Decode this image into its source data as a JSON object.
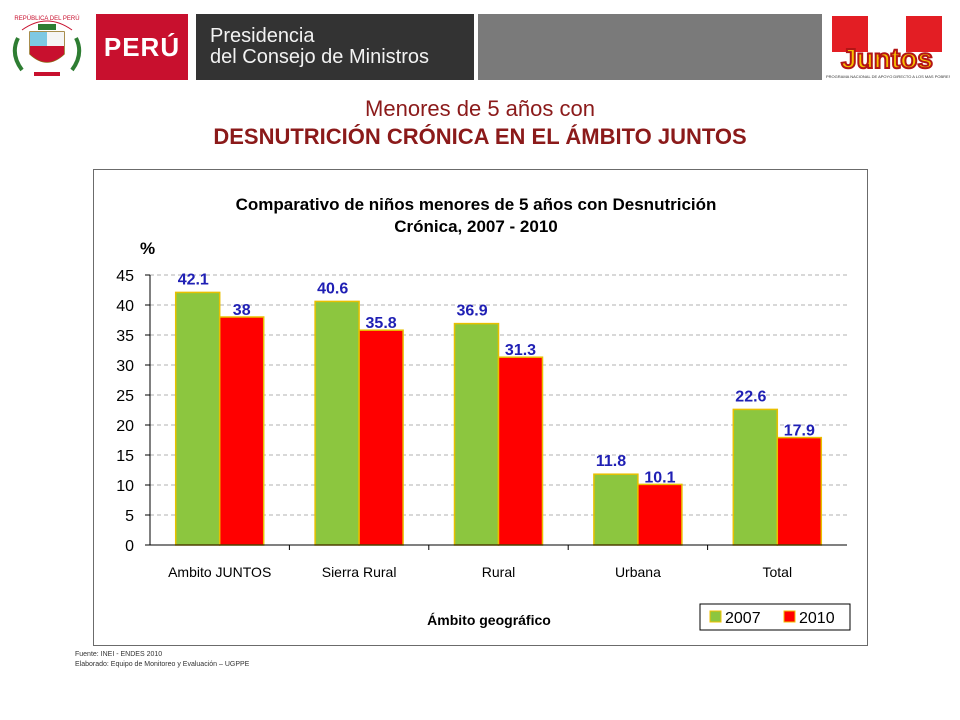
{
  "header": {
    "crest_caption": "REPÚBLICA DEL PERÚ",
    "peru_label": "PERÚ",
    "institution_line1": "Presidencia",
    "institution_line2": "del Consejo de Ministros",
    "program_logo_text": "Juntos",
    "program_logo_sub": "PROGRAMA NACIONAL DE APOYO DIRECTO A LOS MAS POBRES"
  },
  "slide": {
    "title_line1": "Menores de 5 años con",
    "title_line2": "DESNUTRICIÓN CRÓNICA EN EL ÁMBITO JUNTOS"
  },
  "chart_data": {
    "type": "bar",
    "title": "Comparativo de niños menores de 5 años con Desnutrición Crónica, 2007 - 2010",
    "title_line1": "Comparativo de niños menores de 5 años con Desnutrición",
    "title_line2": "Crónica, 2007 - 2010",
    "ylabel": "%",
    "xlabel": "Ámbito geográfico",
    "categories": [
      "Ambito JUNTOS",
      "Sierra Rural",
      "Rural",
      "Urbana",
      "Total"
    ],
    "series": [
      {
        "name": "2007",
        "values": [
          42.1,
          40.6,
          36.9,
          11.8,
          22.6
        ],
        "color": "#8cc63f",
        "label_text": [
          "42.1",
          "40.6",
          "36.9",
          "11.8",
          "22.6"
        ]
      },
      {
        "name": "2010",
        "values": [
          38,
          35.8,
          31.3,
          10.1,
          17.9
        ],
        "color": "#ff0000",
        "label_text": [
          "38",
          "35.8",
          "31.3",
          "10.1",
          "17.9"
        ]
      }
    ],
    "ylim": [
      0,
      45
    ],
    "yticks": [
      0,
      5,
      10,
      15,
      20,
      25,
      30,
      35,
      40,
      45
    ],
    "grid": true,
    "legend_position": "bottom-right",
    "label_color": "#1f1fb4"
  },
  "footer": {
    "source": "Fuente: INEI - ENDES 2010",
    "prepared_by": "Elaborado: Equipo de Monitoreo y Evaluación – UGPPE"
  }
}
